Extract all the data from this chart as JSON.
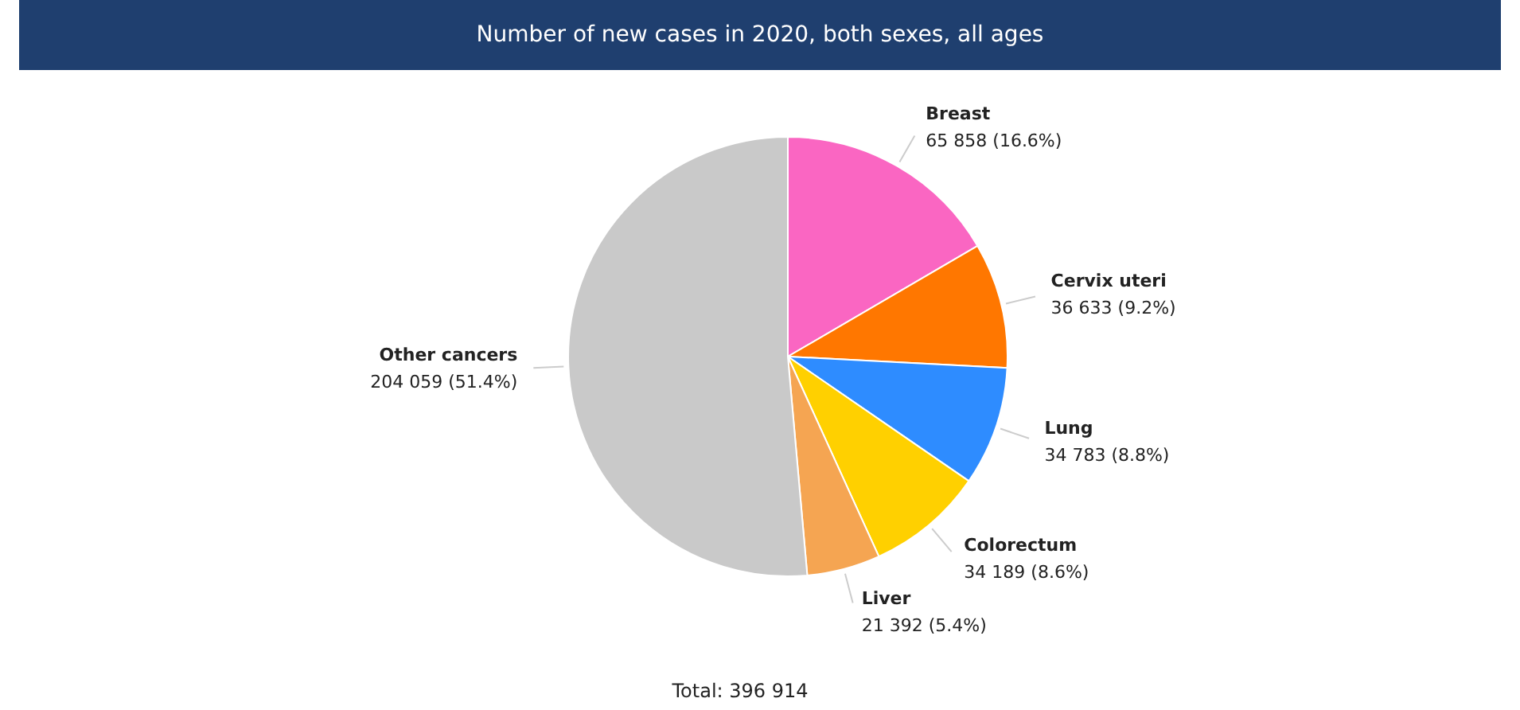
{
  "chart_data": {
    "type": "pie",
    "title": "Number of new cases in 2020, both sexes, all ages",
    "categories": [
      "Breast",
      "Cervix uteri",
      "Lung",
      "Colorectum",
      "Liver",
      "Other cancers"
    ],
    "values": [
      65858,
      36633,
      34783,
      34189,
      21392,
      204059
    ],
    "colors": [
      "#fa66c2",
      "#ff7700",
      "#2e8cff",
      "#ffd000",
      "#f5a552",
      "#c9c9c9"
    ],
    "value_labels": [
      "65 858 (16.6%)",
      "36 633 (9.2%)",
      "34 783 (8.8%)",
      "34 189 (8.6%)",
      "21 392 (5.4%)",
      "204 059 (51.4%)"
    ],
    "annotations": [
      "Total: 396 914"
    ]
  }
}
